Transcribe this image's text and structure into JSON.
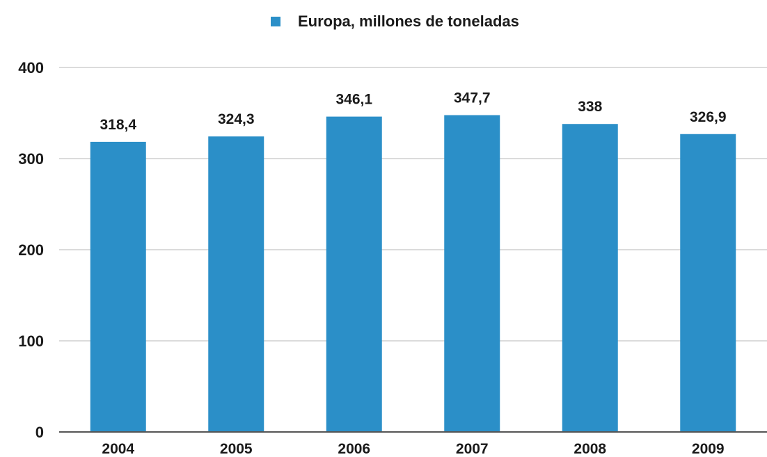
{
  "chart_data": {
    "type": "bar",
    "categories": [
      "2004",
      "2005",
      "2006",
      "2007",
      "2008",
      "2009"
    ],
    "series": [
      {
        "name": "Europa, millones de toneladas",
        "values": [
          318.4,
          324.3,
          346.1,
          347.7,
          338,
          326.9
        ],
        "labels": [
          "318,4",
          "324,3",
          "346,1",
          "347,7",
          "338",
          "326,9"
        ]
      }
    ],
    "yticks": [
      "0",
      "100",
      "200",
      "300",
      "400"
    ],
    "ylim": [
      0,
      400
    ],
    "legend_position": "top-center",
    "grid": true,
    "colors": {
      "bar": "#2b8fc8",
      "grid": "#cfcfcf",
      "axis": "#555555"
    }
  }
}
